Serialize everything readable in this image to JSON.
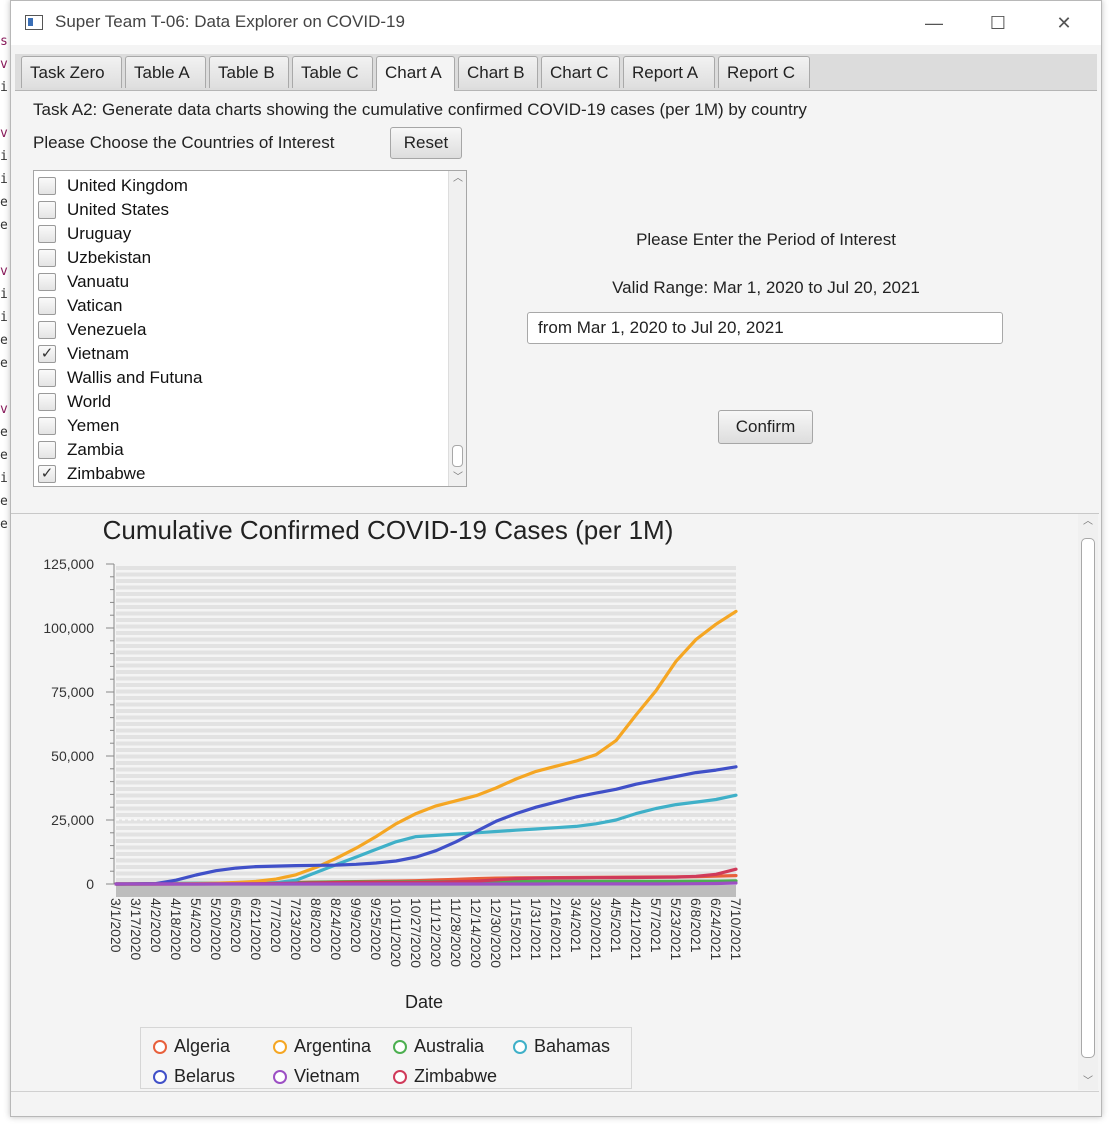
{
  "bg_editor": [
    "s",
    "v",
    "i",
    "",
    "v",
    "i",
    "i",
    "e",
    "e",
    "",
    "v",
    "i",
    "i",
    "e",
    "e",
    "",
    "v",
    "e",
    "e",
    "i",
    "e",
    "e"
  ],
  "window": {
    "title": "Super Team T-06: Data Explorer on COVID-19",
    "minimize": "—",
    "maximize": "☐",
    "close": "✕"
  },
  "tabs": [
    "Task Zero",
    "Table A",
    "Table B",
    "Table C",
    "Chart A",
    "Chart B",
    "Chart C",
    "Report A",
    "Report C"
  ],
  "active_tab": "Chart A",
  "task_label": "Task A2: Generate data charts showing the cumulative confirmed COVID-19 cases (per 1M) by country",
  "choose_label": "Please Choose the Countries of Interest",
  "reset_button": "Reset",
  "countries": [
    {
      "name": "United Kingdom",
      "checked": false,
      "mark": ""
    },
    {
      "name": "United States",
      "checked": false,
      "mark": ""
    },
    {
      "name": "Uruguay",
      "checked": false,
      "mark": ""
    },
    {
      "name": "Uzbekistan",
      "checked": false,
      "mark": ""
    },
    {
      "name": "Vanuatu",
      "checked": false,
      "mark": ""
    },
    {
      "name": "Vatican",
      "checked": false,
      "mark": ""
    },
    {
      "name": "Venezuela",
      "checked": false,
      "mark": ""
    },
    {
      "name": "Vietnam",
      "checked": true,
      "mark": "✓"
    },
    {
      "name": "Wallis and Futuna",
      "checked": false,
      "mark": ""
    },
    {
      "name": "World",
      "checked": false,
      "mark": ""
    },
    {
      "name": "Yemen",
      "checked": false,
      "mark": ""
    },
    {
      "name": "Zambia",
      "checked": false,
      "mark": ""
    },
    {
      "name": "Zimbabwe",
      "checked": true,
      "mark": "✓"
    }
  ],
  "period": {
    "label": "Please Enter the Period of Interest",
    "valid_range": "Valid Range: Mar 1, 2020 to Jul 20, 2021",
    "value": "from Mar 1, 2020 to Jul 20, 2021"
  },
  "confirm_button": "Confirm",
  "chart_data": {
    "type": "line",
    "title": "Cumulative Confirmed COVID-19 Cases (per 1M)",
    "xlabel": "Date",
    "ylabel": "",
    "ylim": [
      0,
      125000
    ],
    "y_ticks": [
      "0",
      "25,000",
      "50,000",
      "75,000",
      "100,000",
      "125,000"
    ],
    "x": [
      "3/1/2020",
      "3/17/2020",
      "4/2/2020",
      "4/18/2020",
      "5/4/2020",
      "5/20/2020",
      "6/5/2020",
      "6/21/2020",
      "7/7/2020",
      "7/23/2020",
      "8/8/2020",
      "8/24/2020",
      "9/9/2020",
      "9/25/2020",
      "10/11/2020",
      "10/27/2020",
      "11/12/2020",
      "11/28/2020",
      "12/14/2020",
      "12/30/2020",
      "1/15/2021",
      "1/31/2021",
      "2/16/2021",
      "3/4/2021",
      "3/20/2021",
      "4/5/2021",
      "4/21/2021",
      "5/7/2021",
      "5/23/2021",
      "6/8/2021",
      "6/24/2021",
      "7/10/2021"
    ],
    "grid": true,
    "legend_position": "bottom",
    "series": [
      {
        "name": "Algeria",
        "color": "#e8603c",
        "values": [
          0,
          0,
          10,
          30,
          70,
          120,
          200,
          300,
          450,
          600,
          750,
          850,
          950,
          1050,
          1150,
          1300,
          1550,
          1800,
          2100,
          2300,
          2400,
          2450,
          2500,
          2550,
          2600,
          2650,
          2700,
          2750,
          2800,
          2900,
          3100,
          3300
        ]
      },
      {
        "name": "Argentina",
        "color": "#f5a623",
        "values": [
          0,
          0,
          30,
          80,
          150,
          300,
          600,
          1000,
          1900,
          3600,
          6500,
          10000,
          14000,
          18500,
          23500,
          27500,
          30500,
          32500,
          34500,
          37500,
          41000,
          44000,
          46000,
          48000,
          50500,
          56000,
          66000,
          75500,
          87000,
          95500,
          101500,
          106500
        ]
      },
      {
        "name": "Australia",
        "color": "#4caf50",
        "values": [
          0,
          10,
          150,
          250,
          280,
          290,
          300,
          330,
          380,
          500,
          700,
          800,
          850,
          870,
          880,
          880,
          890,
          900,
          920,
          950,
          980,
          1000,
          1010,
          1020,
          1030,
          1040,
          1050,
          1060,
          1070,
          1080,
          1100,
          1250
        ]
      },
      {
        "name": "Bahamas",
        "color": "#3fb0c8",
        "values": [
          0,
          0,
          50,
          150,
          220,
          230,
          250,
          300,
          500,
          1500,
          4500,
          7500,
          10500,
          13500,
          16500,
          18500,
          19000,
          19500,
          20000,
          20500,
          21000,
          21500,
          22000,
          22500,
          23500,
          25000,
          27500,
          29500,
          31000,
          32000,
          33000,
          34700
        ]
      },
      {
        "name": "Belarus",
        "color": "#4050c8",
        "values": [
          0,
          20,
          150,
          1500,
          3500,
          5200,
          6200,
          6800,
          7000,
          7200,
          7300,
          7400,
          7700,
          8200,
          9000,
          10500,
          13000,
          16500,
          20500,
          24500,
          27500,
          30000,
          32000,
          34000,
          35500,
          37000,
          39000,
          40500,
          42000,
          43500,
          44500,
          45800
        ]
      },
      {
        "name": "Vietnam",
        "color": "#9c4fc4",
        "values": [
          0,
          0,
          2,
          3,
          3,
          3,
          3,
          3,
          4,
          5,
          8,
          10,
          11,
          11,
          11,
          12,
          12,
          13,
          14,
          15,
          16,
          18,
          25,
          25,
          27,
          29,
          30,
          40,
          60,
          130,
          190,
          380
        ]
      },
      {
        "name": "Zimbabwe",
        "color": "#d03a5a",
        "values": [
          0,
          0,
          2,
          5,
          10,
          30,
          50,
          100,
          200,
          300,
          450,
          550,
          600,
          620,
          630,
          650,
          700,
          900,
          1100,
          1600,
          2100,
          2250,
          2350,
          2400,
          2450,
          2500,
          2550,
          2600,
          2700,
          3000,
          3800,
          5800
        ]
      }
    ]
  }
}
